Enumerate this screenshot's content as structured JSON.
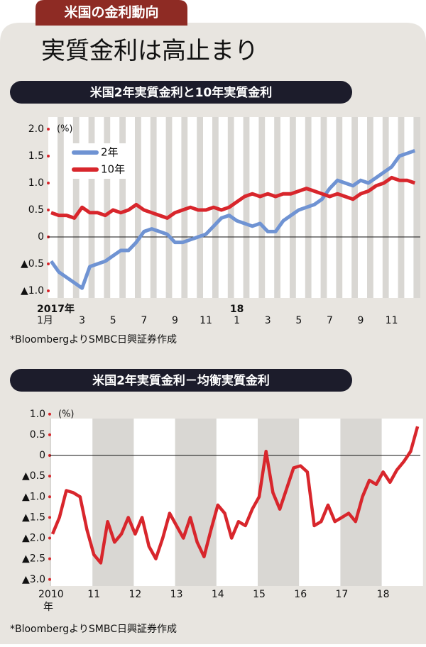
{
  "header": {
    "tab": "米国の金利動向",
    "title": "実質金利は高止まり"
  },
  "chart_data": [
    {
      "type": "line",
      "title": "米国2年実質金利と10年実質金利",
      "unit": "(%)",
      "categories": [
        "1月",
        null,
        null,
        null,
        "3",
        null,
        null,
        null,
        "5",
        null,
        null,
        null,
        "7",
        null,
        null,
        null,
        "9",
        null,
        null,
        null,
        "11",
        null,
        null,
        null,
        "1",
        null,
        null,
        null,
        "3",
        null,
        null,
        null,
        "5",
        null,
        null,
        null,
        "7",
        null,
        null,
        null,
        "9",
        null,
        null,
        null,
        "11",
        null,
        null,
        null
      ],
      "years": [
        "2017年",
        null,
        null,
        null,
        null,
        null,
        null,
        null,
        null,
        null,
        null,
        null,
        null,
        null,
        null,
        null,
        null,
        null,
        null,
        null,
        null,
        null,
        null,
        null,
        "18",
        null,
        null,
        null,
        null,
        null,
        null,
        null,
        null,
        null,
        null,
        null,
        null,
        null,
        null,
        null,
        null,
        null,
        null,
        null,
        null,
        null,
        null,
        null
      ],
      "series": [
        {
          "name": "2年",
          "color": "#6f93d3",
          "values": [
            -0.45,
            -0.65,
            -0.75,
            -0.85,
            -0.95,
            -0.55,
            -0.5,
            -0.45,
            -0.35,
            -0.25,
            -0.25,
            -0.1,
            0.1,
            0.15,
            0.1,
            0.05,
            -0.1,
            -0.1,
            -0.05,
            0.0,
            0.05,
            0.2,
            0.35,
            0.4,
            0.3,
            0.25,
            0.2,
            0.25,
            0.1,
            0.1,
            0.3,
            0.4,
            0.5,
            0.55,
            0.6,
            0.7,
            0.9,
            1.05,
            1.0,
            0.95,
            1.05,
            1.0,
            1.1,
            1.2,
            1.3,
            1.5,
            1.55,
            1.6
          ]
        },
        {
          "name": "10年",
          "color": "#d8262c",
          "values": [
            0.45,
            0.4,
            0.4,
            0.35,
            0.55,
            0.45,
            0.45,
            0.4,
            0.5,
            0.45,
            0.5,
            0.6,
            0.5,
            0.45,
            0.4,
            0.35,
            0.45,
            0.5,
            0.55,
            0.5,
            0.5,
            0.55,
            0.5,
            0.55,
            0.65,
            0.75,
            0.8,
            0.75,
            0.8,
            0.75,
            0.8,
            0.8,
            0.85,
            0.9,
            0.85,
            0.8,
            0.75,
            0.8,
            0.75,
            0.7,
            0.8,
            0.85,
            0.95,
            1.0,
            1.1,
            1.05,
            1.05,
            1.0
          ]
        }
      ],
      "ylim": [
        -1.0,
        2.0
      ],
      "yticks": [
        {
          "value": 2.0,
          "label": "2.0"
        },
        {
          "value": 1.5,
          "label": "1.5"
        },
        {
          "value": 1.0,
          "label": "1.0"
        },
        {
          "value": 0.5,
          "label": "0.5"
        },
        0,
        {
          "value": -0.5,
          "label": "▲0.5"
        },
        {
          "value": -1.0,
          "label": "▲1.0"
        }
      ],
      "legend": "upper left",
      "source": "*BloombergよりSMBC日興証券作成"
    },
    {
      "type": "line",
      "title": "米国2年実質金利－均衡実質金利",
      "unit": "(%)",
      "categories": [
        "2010",
        null,
        null,
        null,
        null,
        null,
        "11",
        null,
        null,
        null,
        null,
        null,
        "12",
        null,
        null,
        null,
        null,
        null,
        "13",
        null,
        null,
        null,
        null,
        null,
        "14",
        null,
        null,
        null,
        null,
        null,
        "15",
        null,
        null,
        null,
        null,
        null,
        "16",
        null,
        null,
        null,
        null,
        null,
        "17",
        null,
        null,
        null,
        null,
        null,
        "18",
        null,
        null,
        null,
        null,
        null
      ],
      "x_unit": "年",
      "series": [
        {
          "color": "#d8262c",
          "values": [
            -1.9,
            -1.5,
            -0.85,
            -0.9,
            -1.0,
            -1.8,
            -2.4,
            -2.6,
            -1.6,
            -2.1,
            -1.9,
            -1.5,
            -1.9,
            -1.5,
            -2.2,
            -2.5,
            -2.0,
            -1.4,
            -1.7,
            -2.0,
            -1.5,
            -2.1,
            -2.45,
            -1.8,
            -1.2,
            -1.4,
            -2.0,
            -1.6,
            -1.7,
            -1.3,
            -1.0,
            0.1,
            -0.9,
            -1.3,
            -0.8,
            -0.3,
            -0.25,
            -0.4,
            -1.7,
            -1.6,
            -1.2,
            -1.6,
            -1.5,
            -1.4,
            -1.6,
            -1.0,
            -0.6,
            -0.7,
            -0.4,
            -0.65,
            -0.35,
            -0.15,
            0.1,
            0.7
          ]
        }
      ],
      "ylim": [
        -3.0,
        1.0
      ],
      "yticks": [
        {
          "value": 1.0,
          "label": "1.0"
        },
        {
          "value": 0.5,
          "label": "0.5"
        },
        0,
        {
          "value": -0.5,
          "label": "▲0.5"
        },
        {
          "value": -1.0,
          "label": "▲1.0"
        },
        {
          "value": -1.5,
          "label": "▲1.5"
        },
        {
          "value": -2.0,
          "label": "▲2.0"
        },
        {
          "value": -2.5,
          "label": "▲2.5"
        },
        {
          "value": -3.0,
          "label": "▲3.0"
        }
      ],
      "source": "*BloombergよりSMBC日興証券作成"
    }
  ]
}
